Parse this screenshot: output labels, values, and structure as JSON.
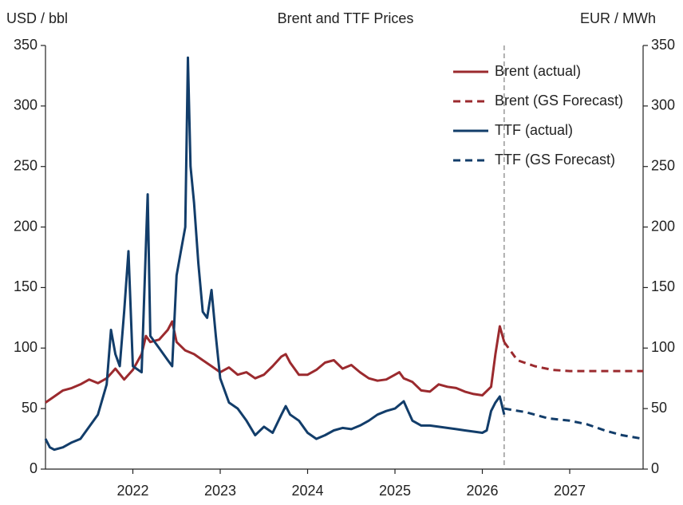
{
  "chart_data": {
    "type": "line",
    "title": "Brent and TTF Prices",
    "ylabel": "USD / bbl",
    "y2label": "EUR / MWh",
    "xlim": [
      2021.0,
      2027.84
    ],
    "xticks": [
      2022,
      2023,
      2024,
      2025,
      2026,
      2027
    ],
    "ylim": [
      0,
      350
    ],
    "yticks": [
      0,
      50,
      100,
      150,
      200,
      250,
      300,
      350
    ],
    "y2lim": [
      0,
      350
    ],
    "y2ticks": [
      0,
      50,
      100,
      150,
      200,
      250,
      300,
      350
    ],
    "vline": 2026.25,
    "legend": "upper right",
    "series": [
      {
        "name": "Brent (actual)",
        "color": "#9b2a2e",
        "linestyle": "solid",
        "x": [
          2021.0,
          2021.1,
          2021.2,
          2021.3,
          2021.4,
          2021.5,
          2021.6,
          2021.7,
          2021.8,
          2021.9,
          2022.0,
          2022.1,
          2022.15,
          2022.2,
          2022.3,
          2022.4,
          2022.45,
          2022.5,
          2022.6,
          2022.7,
          2022.8,
          2022.9,
          2023.0,
          2023.1,
          2023.2,
          2023.3,
          2023.4,
          2023.5,
          2023.6,
          2023.7,
          2023.75,
          2023.8,
          2023.9,
          2024.0,
          2024.1,
          2024.2,
          2024.3,
          2024.4,
          2024.5,
          2024.6,
          2024.7,
          2024.8,
          2024.9,
          2025.0,
          2025.05,
          2025.1,
          2025.2,
          2025.3,
          2025.4,
          2025.5,
          2025.6,
          2025.7,
          2025.8,
          2025.9,
          2026.0,
          2026.1,
          2026.15,
          2026.2,
          2026.25
        ],
        "values": [
          55,
          60,
          65,
          67,
          70,
          74,
          71,
          75,
          83,
          74,
          82,
          95,
          110,
          105,
          107,
          115,
          122,
          105,
          98,
          95,
          90,
          85,
          80,
          84,
          78,
          80,
          75,
          78,
          85,
          93,
          95,
          88,
          78,
          78,
          82,
          88,
          90,
          83,
          86,
          80,
          75,
          73,
          74,
          78,
          80,
          75,
          72,
          65,
          64,
          70,
          68,
          67,
          64,
          62,
          61,
          68,
          95,
          118,
          105
        ]
      },
      {
        "name": "Brent (GS Forecast)",
        "color": "#9b2a2e",
        "linestyle": "dashed",
        "x": [
          2026.25,
          2026.4,
          2026.6,
          2026.8,
          2027.0,
          2027.84
        ],
        "values": [
          105,
          90,
          85,
          82,
          81,
          81
        ]
      },
      {
        "name": "TTF (actual)",
        "color": "#123d6a",
        "linestyle": "solid",
        "axis": "y2",
        "x": [
          2021.0,
          2021.05,
          2021.1,
          2021.2,
          2021.3,
          2021.4,
          2021.5,
          2021.6,
          2021.7,
          2021.75,
          2021.8,
          2021.85,
          2021.9,
          2021.95,
          2022.0,
          2022.1,
          2022.15,
          2022.17,
          2022.2,
          2022.3,
          2022.4,
          2022.45,
          2022.5,
          2022.55,
          2022.6,
          2022.63,
          2022.66,
          2022.7,
          2022.75,
          2022.8,
          2022.85,
          2022.9,
          2022.95,
          2023.0,
          2023.1,
          2023.2,
          2023.3,
          2023.4,
          2023.5,
          2023.6,
          2023.7,
          2023.75,
          2023.8,
          2023.9,
          2024.0,
          2024.1,
          2024.2,
          2024.3,
          2024.4,
          2024.5,
          2024.6,
          2024.7,
          2024.8,
          2024.9,
          2025.0,
          2025.1,
          2025.15,
          2025.2,
          2025.3,
          2025.4,
          2025.5,
          2025.6,
          2025.7,
          2025.8,
          2025.9,
          2026.0,
          2026.05,
          2026.1,
          2026.15,
          2026.2,
          2026.25
        ],
        "values": [
          25,
          18,
          16,
          18,
          22,
          25,
          35,
          45,
          70,
          115,
          95,
          85,
          130,
          180,
          85,
          80,
          185,
          227,
          110,
          100,
          90,
          85,
          160,
          180,
          200,
          340,
          250,
          220,
          170,
          130,
          125,
          148,
          110,
          75,
          55,
          50,
          40,
          28,
          35,
          30,
          45,
          52,
          45,
          40,
          30,
          25,
          28,
          32,
          34,
          33,
          36,
          40,
          45,
          48,
          50,
          56,
          48,
          40,
          36,
          36,
          35,
          34,
          33,
          32,
          31,
          30,
          32,
          48,
          55,
          60,
          45
        ]
      },
      {
        "name": "TTF (GS Forecast)",
        "color": "#123d6a",
        "linestyle": "dashed",
        "axis": "y2",
        "x": [
          2026.25,
          2026.5,
          2026.75,
          2027.0,
          2027.2,
          2027.4,
          2027.6,
          2027.84
        ],
        "values": [
          50,
          47,
          42,
          40,
          37,
          32,
          28,
          25
        ]
      }
    ]
  }
}
